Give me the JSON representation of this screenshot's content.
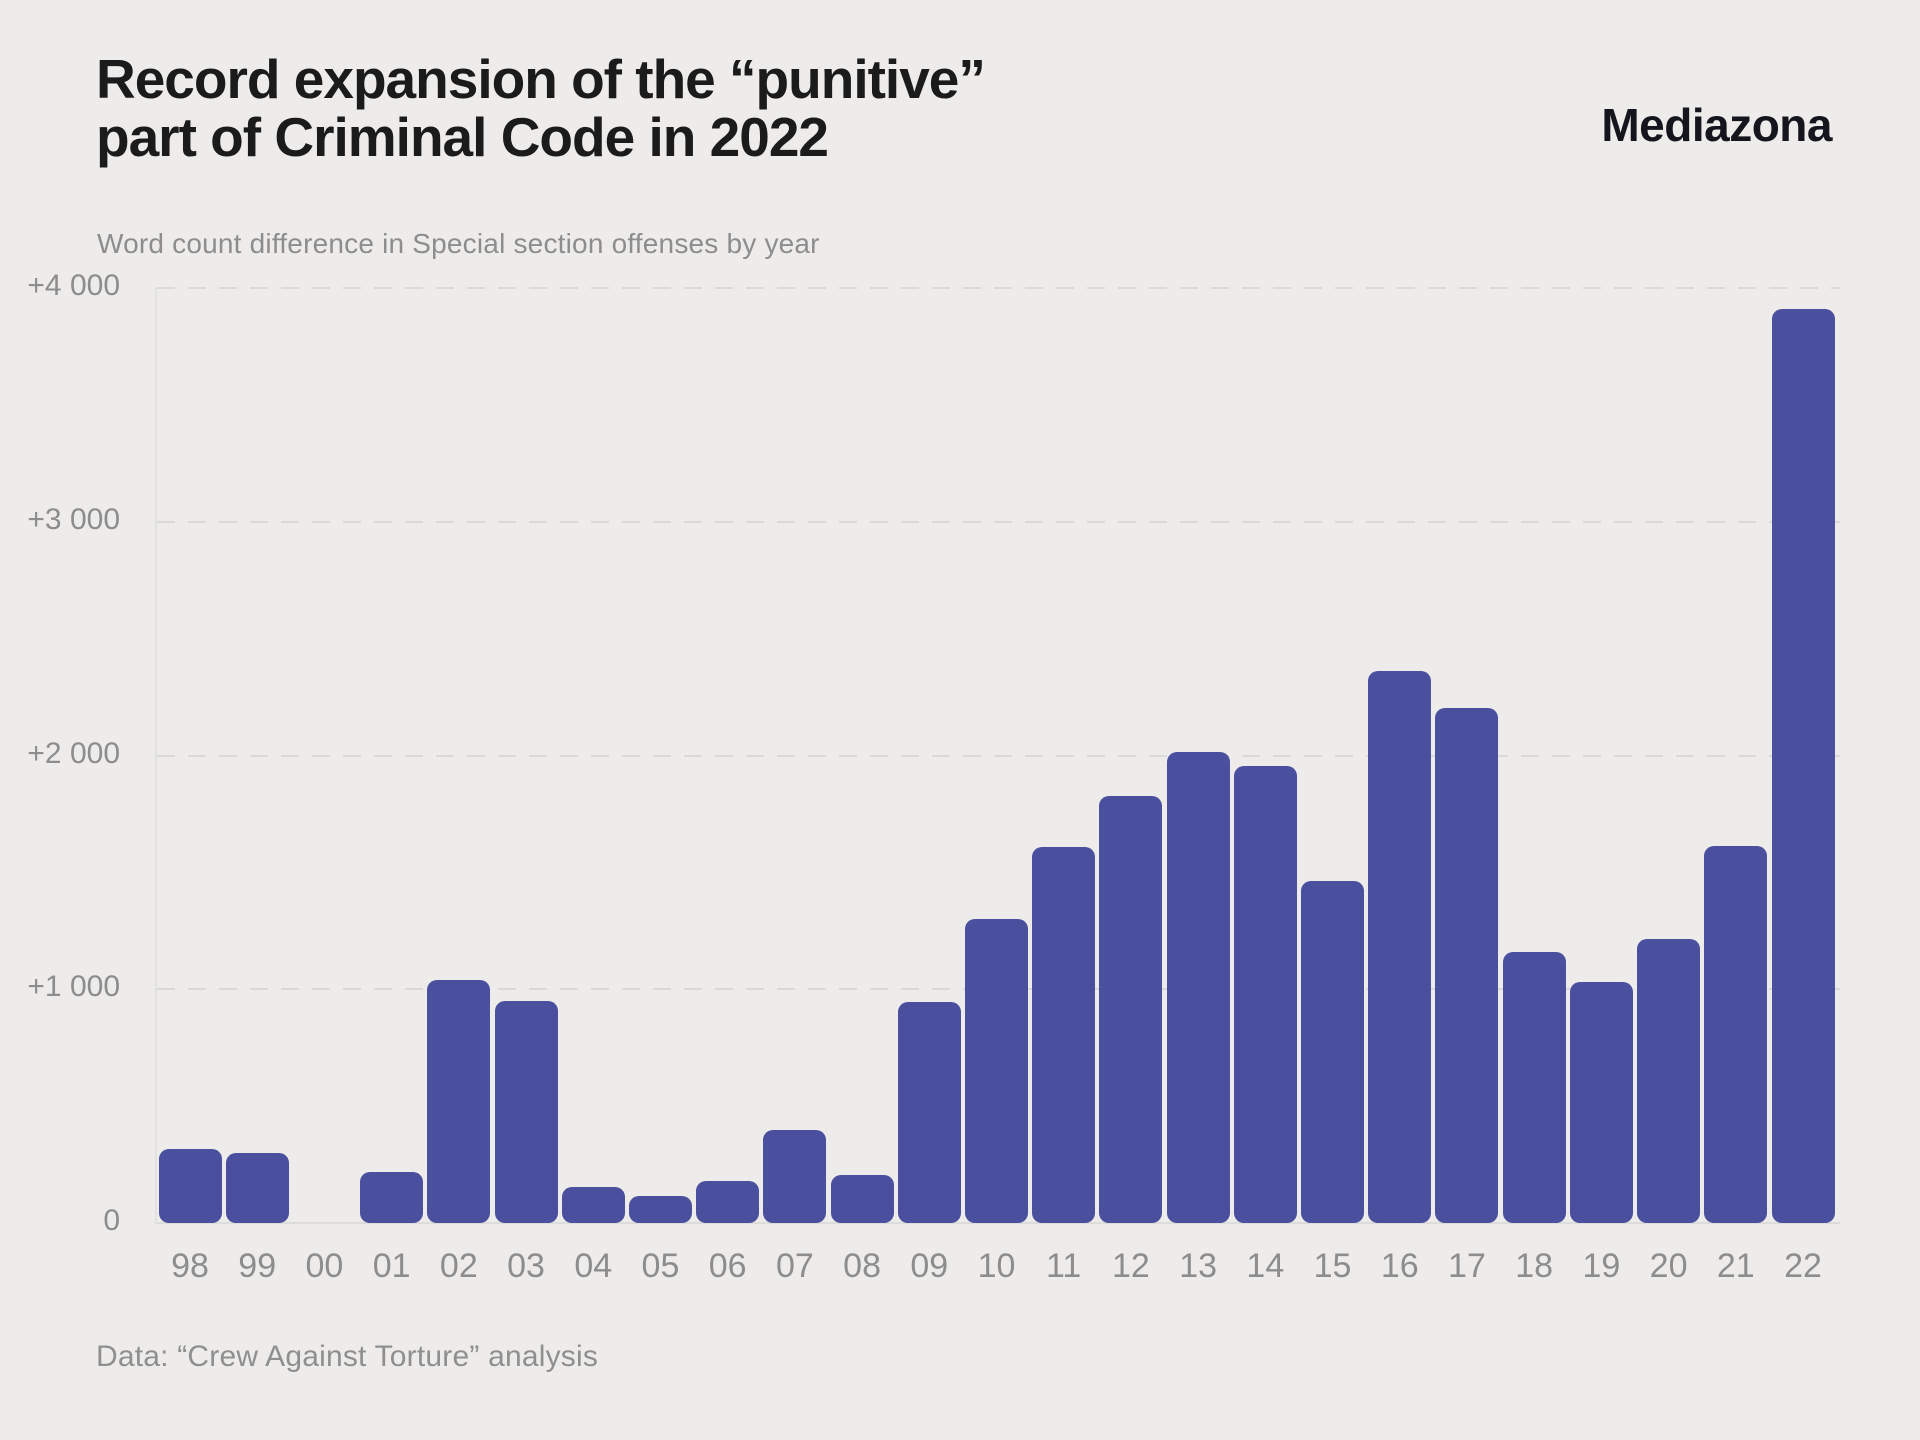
{
  "header": {
    "title_line1": "Record expansion of the “punitive”",
    "title_line2": "part of Criminal Code in 2022",
    "subtitle": "Word count difference in Special section offenses by year",
    "logo": "Mediazona"
  },
  "footer": {
    "source": "Data: “Crew Against Torture” analysis"
  },
  "colors": {
    "background": "#edecea",
    "bar": "#4a4f9e",
    "title_text": "#1b1b1b",
    "muted_text": "#8d8d8d",
    "gridline": "#d9d9d7"
  },
  "chart_data": {
    "type": "bar",
    "title": "Record expansion of the “punitive” part of Criminal Code in 2022",
    "subtitle": "Word count difference in Special section offenses by year",
    "source": "Data: “Crew Against Torture” analysis",
    "categories": [
      "98",
      "99",
      "00",
      "01",
      "02",
      "03",
      "04",
      "05",
      "06",
      "07",
      "08",
      "09",
      "10",
      "11",
      "12",
      "13",
      "14",
      "15",
      "16",
      "17",
      "18",
      "19",
      "20",
      "21",
      "22"
    ],
    "values": [
      315,
      300,
      0,
      220,
      1040,
      950,
      155,
      115,
      180,
      400,
      205,
      945,
      1300,
      1610,
      1825,
      2015,
      1955,
      1465,
      2360,
      2205,
      1160,
      1030,
      1215,
      1615,
      3910
    ],
    "xlabel": "",
    "ylabel": "",
    "ylim": [
      0,
      4000
    ],
    "y_ticks": [
      {
        "label": "+4 000",
        "value": 4000
      },
      {
        "label": "+3 000",
        "value": 3000
      },
      {
        "label": "+2 000",
        "value": 2000
      },
      {
        "label": "+1 000",
        "value": 1000
      },
      {
        "label": "0",
        "value": 0
      }
    ],
    "grid": "horizontal-dashed",
    "legend": "none",
    "bar_color": "#4a4f9e"
  }
}
